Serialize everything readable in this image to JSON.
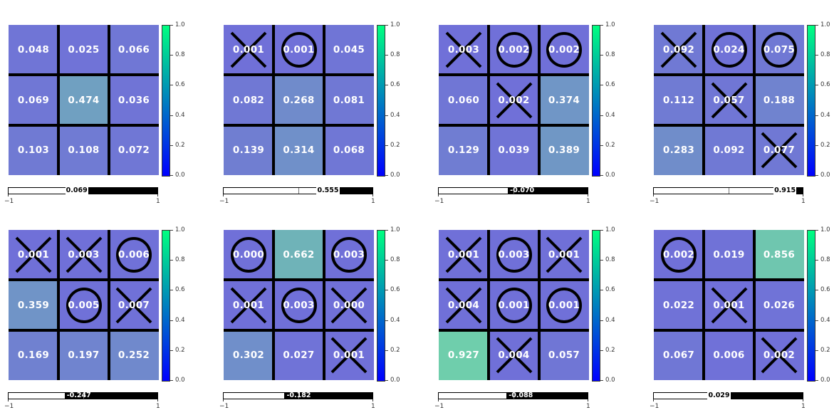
{
  "colorbar": {
    "ticks": [
      "0.0",
      "0.2",
      "0.4",
      "0.6",
      "0.8",
      "1.0"
    ]
  },
  "value_axis": {
    "min_label": "−1",
    "max_label": "1"
  },
  "colors": {
    "low": "#7070d8",
    "high": "#6fd5a8",
    "grid": "#000000",
    "text": "#ffffff"
  },
  "panels": [
    {
      "value_label": "0.069",
      "value": 0.069,
      "cells": [
        {
          "v": "0.048",
          "p": 0.048,
          "mark": ""
        },
        {
          "v": "0.025",
          "p": 0.025,
          "mark": ""
        },
        {
          "v": "0.066",
          "p": 0.066,
          "mark": ""
        },
        {
          "v": "0.069",
          "p": 0.069,
          "mark": ""
        },
        {
          "v": "0.474",
          "p": 0.474,
          "mark": ""
        },
        {
          "v": "0.036",
          "p": 0.036,
          "mark": ""
        },
        {
          "v": "0.103",
          "p": 0.103,
          "mark": ""
        },
        {
          "v": "0.108",
          "p": 0.108,
          "mark": ""
        },
        {
          "v": "0.072",
          "p": 0.072,
          "mark": ""
        }
      ]
    },
    {
      "value_label": "0.555",
      "value": 0.555,
      "cells": [
        {
          "v": "0.001",
          "p": 0.001,
          "mark": "x"
        },
        {
          "v": "0.001",
          "p": 0.001,
          "mark": "o"
        },
        {
          "v": "0.045",
          "p": 0.045,
          "mark": ""
        },
        {
          "v": "0.082",
          "p": 0.082,
          "mark": ""
        },
        {
          "v": "0.268",
          "p": 0.268,
          "mark": ""
        },
        {
          "v": "0.081",
          "p": 0.081,
          "mark": ""
        },
        {
          "v": "0.139",
          "p": 0.139,
          "mark": ""
        },
        {
          "v": "0.314",
          "p": 0.314,
          "mark": ""
        },
        {
          "v": "0.068",
          "p": 0.068,
          "mark": ""
        }
      ]
    },
    {
      "value_label": "-0.070",
      "value": -0.07,
      "cells": [
        {
          "v": "0.003",
          "p": 0.003,
          "mark": "x"
        },
        {
          "v": "0.002",
          "p": 0.002,
          "mark": "o"
        },
        {
          "v": "0.002",
          "p": 0.002,
          "mark": "o"
        },
        {
          "v": "0.060",
          "p": 0.06,
          "mark": ""
        },
        {
          "v": "0.002",
          "p": 0.002,
          "mark": "x"
        },
        {
          "v": "0.374",
          "p": 0.374,
          "mark": ""
        },
        {
          "v": "0.129",
          "p": 0.129,
          "mark": ""
        },
        {
          "v": "0.039",
          "p": 0.039,
          "mark": ""
        },
        {
          "v": "0.389",
          "p": 0.389,
          "mark": ""
        }
      ]
    },
    {
      "value_label": "0.915",
      "value": 0.915,
      "cells": [
        {
          "v": "0.092",
          "p": 0.092,
          "mark": "x"
        },
        {
          "v": "0.024",
          "p": 0.024,
          "mark": "o"
        },
        {
          "v": "0.075",
          "p": 0.075,
          "mark": "o"
        },
        {
          "v": "0.112",
          "p": 0.112,
          "mark": ""
        },
        {
          "v": "0.057",
          "p": 0.057,
          "mark": "x"
        },
        {
          "v": "0.188",
          "p": 0.188,
          "mark": ""
        },
        {
          "v": "0.283",
          "p": 0.283,
          "mark": ""
        },
        {
          "v": "0.092",
          "p": 0.092,
          "mark": ""
        },
        {
          "v": "0.077",
          "p": 0.077,
          "mark": "x"
        }
      ]
    },
    {
      "value_label": "-0.247",
      "value": -0.247,
      "cells": [
        {
          "v": "0.001",
          "p": 0.001,
          "mark": "x"
        },
        {
          "v": "0.003",
          "p": 0.003,
          "mark": "x"
        },
        {
          "v": "0.006",
          "p": 0.006,
          "mark": "o"
        },
        {
          "v": "0.359",
          "p": 0.359,
          "mark": ""
        },
        {
          "v": "0.005",
          "p": 0.005,
          "mark": "o"
        },
        {
          "v": "0.007",
          "p": 0.007,
          "mark": "x"
        },
        {
          "v": "0.169",
          "p": 0.169,
          "mark": ""
        },
        {
          "v": "0.197",
          "p": 0.197,
          "mark": ""
        },
        {
          "v": "0.252",
          "p": 0.252,
          "mark": ""
        }
      ]
    },
    {
      "value_label": "-0.182",
      "value": -0.182,
      "cells": [
        {
          "v": "0.000",
          "p": 0.0,
          "mark": "o"
        },
        {
          "v": "0.662",
          "p": 0.662,
          "mark": ""
        },
        {
          "v": "0.003",
          "p": 0.003,
          "mark": "o"
        },
        {
          "v": "0.001",
          "p": 0.001,
          "mark": "x"
        },
        {
          "v": "0.003",
          "p": 0.003,
          "mark": "o"
        },
        {
          "v": "0.000",
          "p": 0.0,
          "mark": "x"
        },
        {
          "v": "0.302",
          "p": 0.302,
          "mark": ""
        },
        {
          "v": "0.027",
          "p": 0.027,
          "mark": ""
        },
        {
          "v": "0.001",
          "p": 0.001,
          "mark": "x"
        }
      ]
    },
    {
      "value_label": "-0.088",
      "value": -0.088,
      "cells": [
        {
          "v": "0.001",
          "p": 0.001,
          "mark": "x"
        },
        {
          "v": "0.003",
          "p": 0.003,
          "mark": "o"
        },
        {
          "v": "0.001",
          "p": 0.001,
          "mark": "x"
        },
        {
          "v": "0.004",
          "p": 0.004,
          "mark": "x"
        },
        {
          "v": "0.001",
          "p": 0.001,
          "mark": "o"
        },
        {
          "v": "0.001",
          "p": 0.001,
          "mark": "o"
        },
        {
          "v": "0.927",
          "p": 0.927,
          "mark": ""
        },
        {
          "v": "0.004",
          "p": 0.004,
          "mark": "x"
        },
        {
          "v": "0.057",
          "p": 0.057,
          "mark": ""
        }
      ]
    },
    {
      "value_label": "0.029",
      "value": 0.029,
      "cells": [
        {
          "v": "0.002",
          "p": 0.002,
          "mark": "o"
        },
        {
          "v": "0.019",
          "p": 0.019,
          "mark": ""
        },
        {
          "v": "0.856",
          "p": 0.856,
          "mark": ""
        },
        {
          "v": "0.022",
          "p": 0.022,
          "mark": ""
        },
        {
          "v": "0.001",
          "p": 0.001,
          "mark": "x"
        },
        {
          "v": "0.026",
          "p": 0.026,
          "mark": ""
        },
        {
          "v": "0.067",
          "p": 0.067,
          "mark": ""
        },
        {
          "v": "0.006",
          "p": 0.006,
          "mark": ""
        },
        {
          "v": "0.002",
          "p": 0.002,
          "mark": "x"
        }
      ]
    }
  ]
}
